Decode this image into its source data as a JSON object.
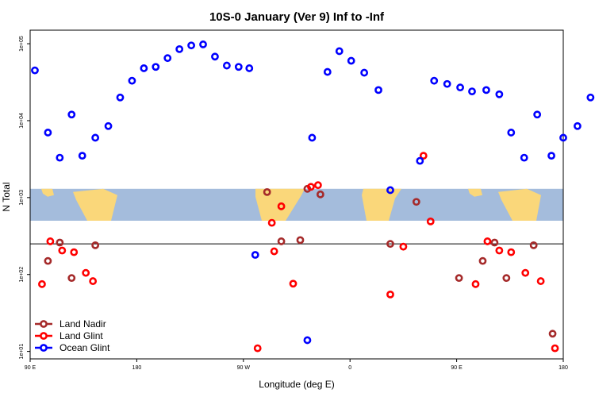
{
  "chart_data": {
    "type": "scatter",
    "title": "10S-0 January (Ver 9)   Inf to -Inf",
    "xlabel": "Longitude (deg E)",
    "ylabel": "N Total",
    "y_scale": "log",
    "ylim": [
      8,
      150000
    ],
    "x_ticks": [
      {
        "pos": 0,
        "label": "90 E"
      },
      {
        "pos": 90,
        "label": "180"
      },
      {
        "pos": 180,
        "label": "90 W"
      },
      {
        "pos": 270,
        "label": "0"
      },
      {
        "pos": 360,
        "label": "90 E"
      },
      {
        "pos": 450,
        "label": "180"
      }
    ],
    "y_ticks": [
      {
        "value": 10,
        "label": "1e+01"
      },
      {
        "value": 100,
        "label": "1e+02"
      },
      {
        "value": 1000,
        "label": "1e+03"
      },
      {
        "value": 10000,
        "label": "1e+04"
      },
      {
        "value": 100000,
        "label": "1e+05"
      }
    ],
    "reference_line": 250,
    "map_band": [
      500,
      1300
    ],
    "series": [
      {
        "name": "Land Nadir",
        "color": "#a52a2a",
        "points": [
          [
            15,
            150
          ],
          [
            25,
            260
          ],
          [
            35,
            90
          ],
          [
            55,
            240
          ],
          [
            200,
            1180
          ],
          [
            212,
            270
          ],
          [
            228,
            280
          ],
          [
            234,
            1300
          ],
          [
            245,
            1100
          ],
          [
            304,
            250
          ],
          [
            326,
            880
          ],
          [
            362,
            90
          ],
          [
            382,
            150
          ],
          [
            392,
            260
          ],
          [
            402,
            90
          ],
          [
            425,
            240
          ],
          [
            441,
            17
          ]
        ]
      },
      {
        "name": "Land Glint",
        "color": "#ff0000",
        "points": [
          [
            10,
            75
          ],
          [
            17,
            270
          ],
          [
            27,
            205
          ],
          [
            37,
            195
          ],
          [
            47,
            105
          ],
          [
            53,
            82
          ],
          [
            192,
            11
          ],
          [
            204,
            470
          ],
          [
            206,
            200
          ],
          [
            212,
            770
          ],
          [
            222,
            76
          ],
          [
            237,
            1380
          ],
          [
            243,
            1450
          ],
          [
            304,
            55
          ],
          [
            315,
            230
          ],
          [
            332,
            3500
          ],
          [
            338,
            490
          ],
          [
            376,
            75
          ],
          [
            386,
            270
          ],
          [
            396,
            205
          ],
          [
            406,
            195
          ],
          [
            418,
            105
          ],
          [
            431,
            82
          ],
          [
            443,
            11
          ]
        ]
      },
      {
        "name": "Ocean Glint",
        "color": "#0000ff",
        "points": [
          [
            4,
            45000
          ],
          [
            15,
            7000
          ],
          [
            25,
            3300
          ],
          [
            35,
            12000
          ],
          [
            44,
            3500
          ],
          [
            55,
            6000
          ],
          [
            66,
            8500
          ],
          [
            76,
            20000
          ],
          [
            86,
            33000
          ],
          [
            96,
            48000
          ],
          [
            106,
            50000
          ],
          [
            116,
            65000
          ],
          [
            126,
            85000
          ],
          [
            136,
            95000
          ],
          [
            146,
            98000
          ],
          [
            156,
            68000
          ],
          [
            166,
            52000
          ],
          [
            176,
            50000
          ],
          [
            185,
            48000
          ],
          [
            190,
            180
          ],
          [
            234,
            14
          ],
          [
            238,
            6000
          ],
          [
            251,
            43000
          ],
          [
            261,
            80000
          ],
          [
            271,
            60000
          ],
          [
            282,
            42000
          ],
          [
            294,
            25000
          ],
          [
            304,
            1250
          ],
          [
            329,
            3000
          ],
          [
            341,
            33000
          ],
          [
            352,
            30000
          ],
          [
            363,
            27000
          ],
          [
            373,
            24000
          ],
          [
            385,
            25000
          ],
          [
            396,
            22000
          ],
          [
            406,
            7000
          ],
          [
            417,
            3300
          ],
          [
            428,
            12000
          ],
          [
            440,
            3500
          ],
          [
            450,
            6000
          ],
          [
            462,
            8500
          ],
          [
            473,
            20000
          ],
          [
            482,
            38000
          ]
        ]
      }
    ],
    "legend": {
      "placement": "bottom-left",
      "entries": [
        "Land Nadir",
        "Land Glint",
        "Ocean Glint"
      ]
    }
  },
  "colors": {
    "ocean": "#a4bcdc",
    "land": "#fad77a",
    "axis": "#000000"
  }
}
